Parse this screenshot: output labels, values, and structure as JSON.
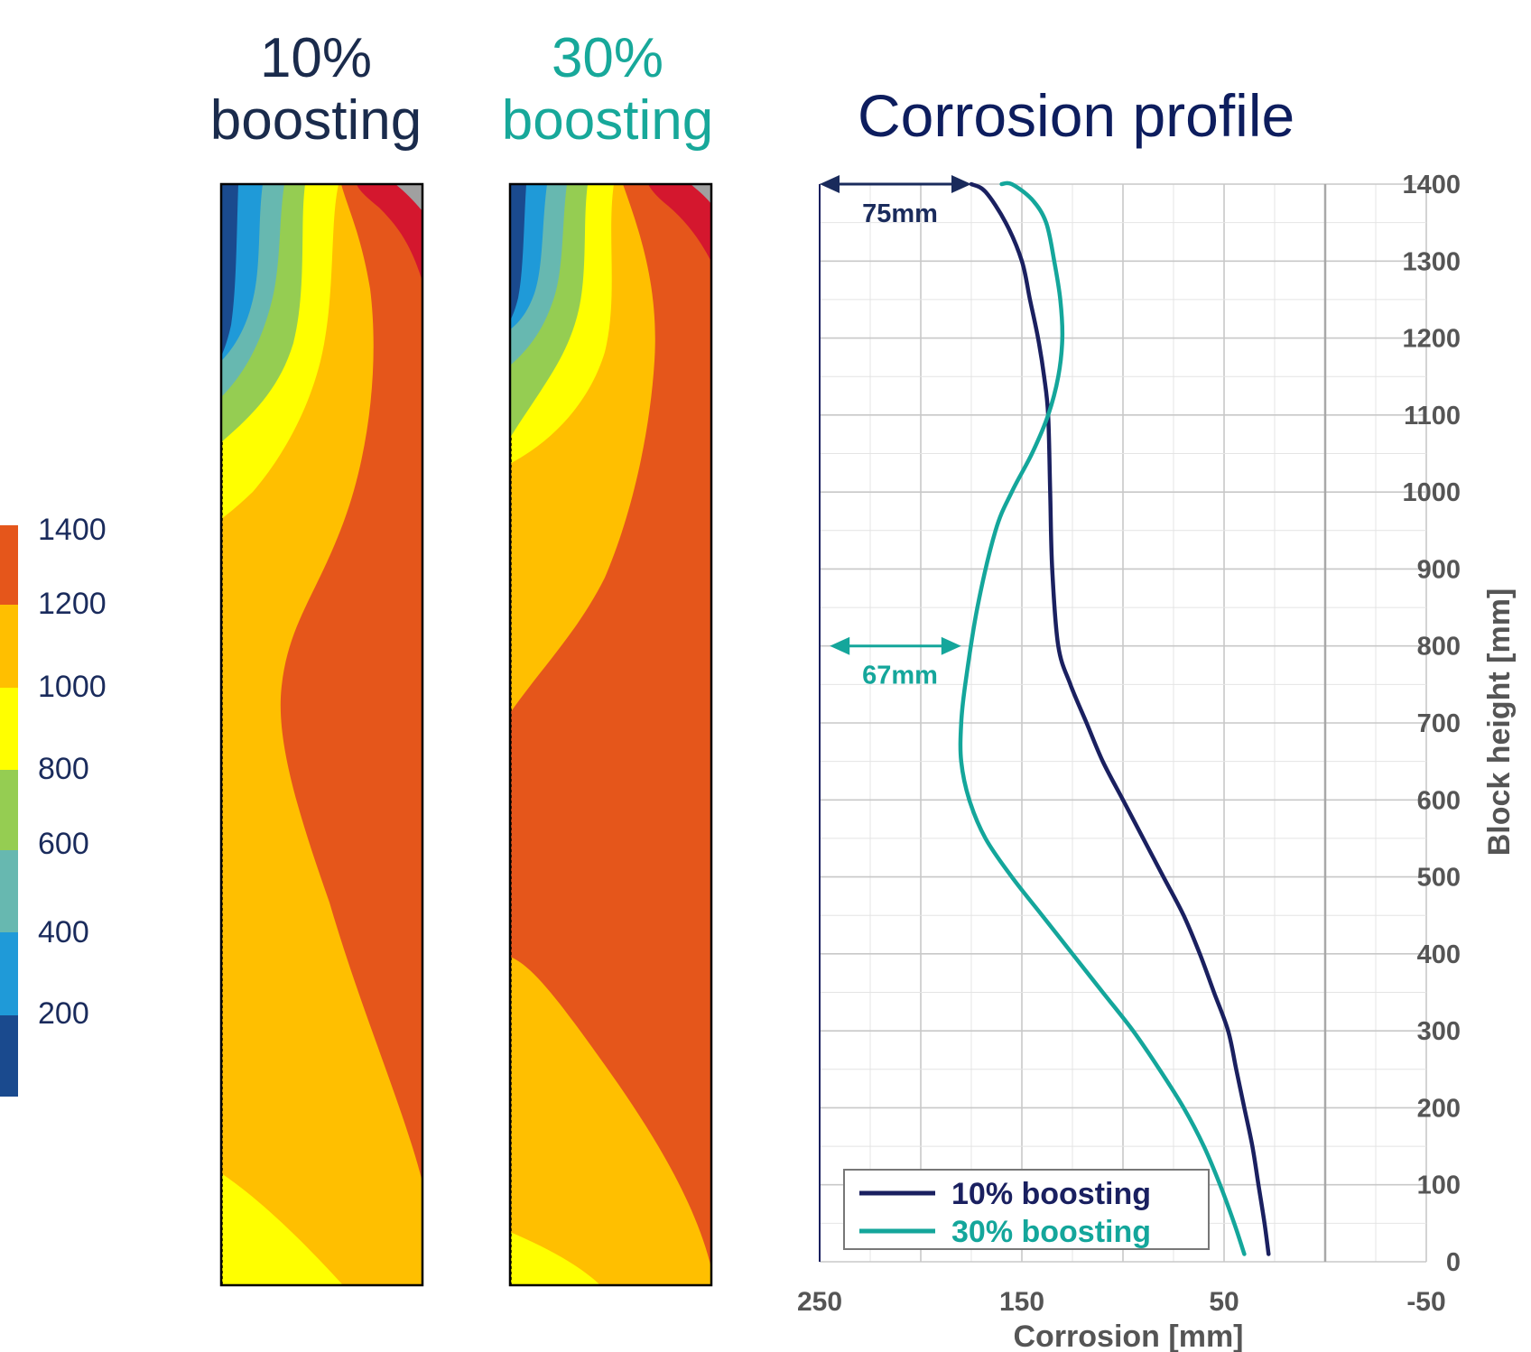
{
  "panels": [
    {
      "title_line1": "10%",
      "title_line2": "boosting",
      "color": "#1a2b4c"
    },
    {
      "title_line1": "30%",
      "title_line2": "boosting",
      "color": "#17a89a"
    }
  ],
  "colorbar": {
    "labels": [
      "1400",
      "1200",
      "1000",
      "800",
      "600",
      "400",
      "200"
    ],
    "colors": [
      "#1a4a8e",
      "#1f9ad8",
      "#67b8b0",
      "#95cd52",
      "#ffff00",
      "#ffbf00",
      "#e5561b"
    ]
  },
  "chart_data": {
    "type": "line",
    "title": "Corrosion profile",
    "xlabel": "Corrosion [mm]",
    "ylabel": "Block height [mm]",
    "xlim": [
      250,
      -50
    ],
    "ylim": [
      0,
      1400
    ],
    "x_ticks": [
      "250",
      "150",
      "50",
      "-50"
    ],
    "y_ticks": [
      "0",
      "100",
      "200",
      "300",
      "400",
      "500",
      "600",
      "700",
      "800",
      "900",
      "1000",
      "1100",
      "1200",
      "1300",
      "1400"
    ],
    "grid": true,
    "legend_position": "bottom-left",
    "series": [
      {
        "name": "10% boosting",
        "color": "#1a2060",
        "x": [
          28,
          30,
          33,
          36,
          40,
          44,
          48,
          55,
          62,
          70,
          80,
          90,
          100,
          110,
          118,
          126,
          132,
          135,
          136,
          137,
          139,
          142,
          146,
          150,
          158,
          168,
          175
        ],
        "y": [
          10,
          50,
          100,
          150,
          200,
          250,
          300,
          350,
          400,
          450,
          500,
          550,
          600,
          650,
          700,
          750,
          800,
          900,
          1000,
          1100,
          1150,
          1200,
          1250,
          1300,
          1350,
          1390,
          1400
        ]
      },
      {
        "name": "30% boosting",
        "color": "#14a69b",
        "x": [
          40,
          45,
          52,
          60,
          70,
          82,
          95,
          110,
          125,
          140,
          155,
          168,
          176,
          180,
          180,
          178,
          172,
          163,
          155,
          145,
          137,
          132,
          130,
          131,
          134,
          138,
          145,
          155,
          160
        ],
        "y": [
          10,
          50,
          100,
          150,
          200,
          250,
          300,
          350,
          400,
          450,
          500,
          550,
          600,
          650,
          700,
          750,
          850,
          950,
          1000,
          1050,
          1100,
          1150,
          1200,
          1250,
          1300,
          1350,
          1380,
          1400,
          1400
        ]
      }
    ],
    "annotations": [
      {
        "text": "75mm",
        "at_height": 1400,
        "from_x": 250,
        "to_x": 175,
        "color": "#1a2b5c"
      },
      {
        "text": "67mm",
        "at_height": 800,
        "from_x": 245,
        "to_x": 180,
        "color": "#14a69b"
      }
    ]
  }
}
